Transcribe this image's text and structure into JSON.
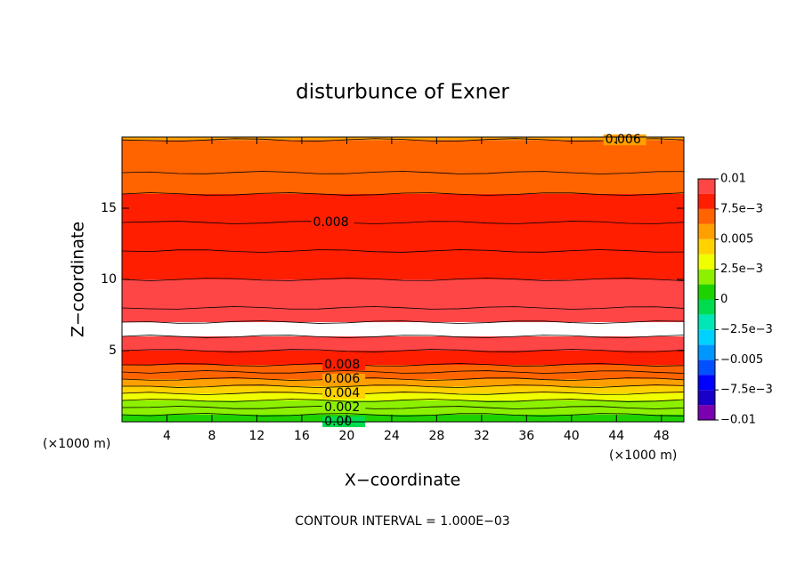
{
  "chart_data": {
    "type": "contour",
    "title": "disturbunce of Exner",
    "x_label": "X−coordinate",
    "y_label": "Z−coordinate",
    "x_unit": "(×1000 m)",
    "note": "CONTOUR INTERVAL = 1.000E−03",
    "xlim": [
      0,
      50
    ],
    "ylim": [
      0,
      20
    ],
    "xticks": [
      4,
      8,
      12,
      16,
      20,
      24,
      28,
      32,
      36,
      40,
      44,
      48
    ],
    "yticks": [
      5,
      10,
      15
    ],
    "y": [
      0,
      0.5,
      1,
      1.5,
      2,
      2.5,
      3,
      3.5,
      4,
      5,
      6,
      7,
      8,
      10,
      12,
      14,
      16,
      17.5,
      19.8
    ],
    "values": [
      0,
      0.001,
      0.002,
      0.003,
      0.004,
      0.005,
      0.006,
      0.007,
      0.008,
      0.0095,
      0.0102,
      0.0102,
      0.0098,
      0.009,
      0.0085,
      0.008,
      0.0075,
      0.007,
      0.006
    ],
    "levels": [
      -0.01,
      -0.00875,
      -0.0075,
      -0.00625,
      -0.005,
      -0.00375,
      -0.0025,
      -0.00125,
      0,
      0.00125,
      0.0025,
      0.00375,
      0.005,
      0.00625,
      0.0075,
      0.00875,
      0.01
    ],
    "colors": [
      "#7a00b0",
      "#1800c8",
      "#0000ff",
      "#0050ff",
      "#0096ff",
      "#00d2ff",
      "#00e6b4",
      "#00dc50",
      "#1ed200",
      "#8cf000",
      "#f0ff00",
      "#ffd200",
      "#ffa000",
      "#ff6400",
      "#ff1e00",
      "#ff4646",
      "#ff8c8c"
    ],
    "over_color": "#ffffff",
    "colorbar_ticks": [
      {
        "value": 0.01,
        "label": "0.01"
      },
      {
        "value": 0.0075,
        "label": "7.5e−3"
      },
      {
        "value": 0.005,
        "label": "0.005"
      },
      {
        "value": 0.0025,
        "label": "2.5e−3"
      },
      0,
      {
        "value": -0.0025,
        "label": "−2.5e−3"
      },
      {
        "value": -0.005,
        "label": "−0.005"
      },
      {
        "value": -0.0075,
        "label": "−7.5e−3"
      },
      {
        "value": -0.01,
        "label": "−0.01"
      }
    ],
    "contour_labels": [
      {
        "text": "0.006",
        "value": 0.006
      },
      {
        "text": "0.008",
        "value": 0.008
      },
      {
        "text": "0.008",
        "value": 0.008
      },
      {
        "text": "0.006",
        "value": 0.006
      },
      {
        "text": "0.004",
        "value": 0.004
      },
      {
        "text": "0.002",
        "value": 0.002
      },
      {
        "text": "0.00",
        "value": 0
      }
    ]
  }
}
